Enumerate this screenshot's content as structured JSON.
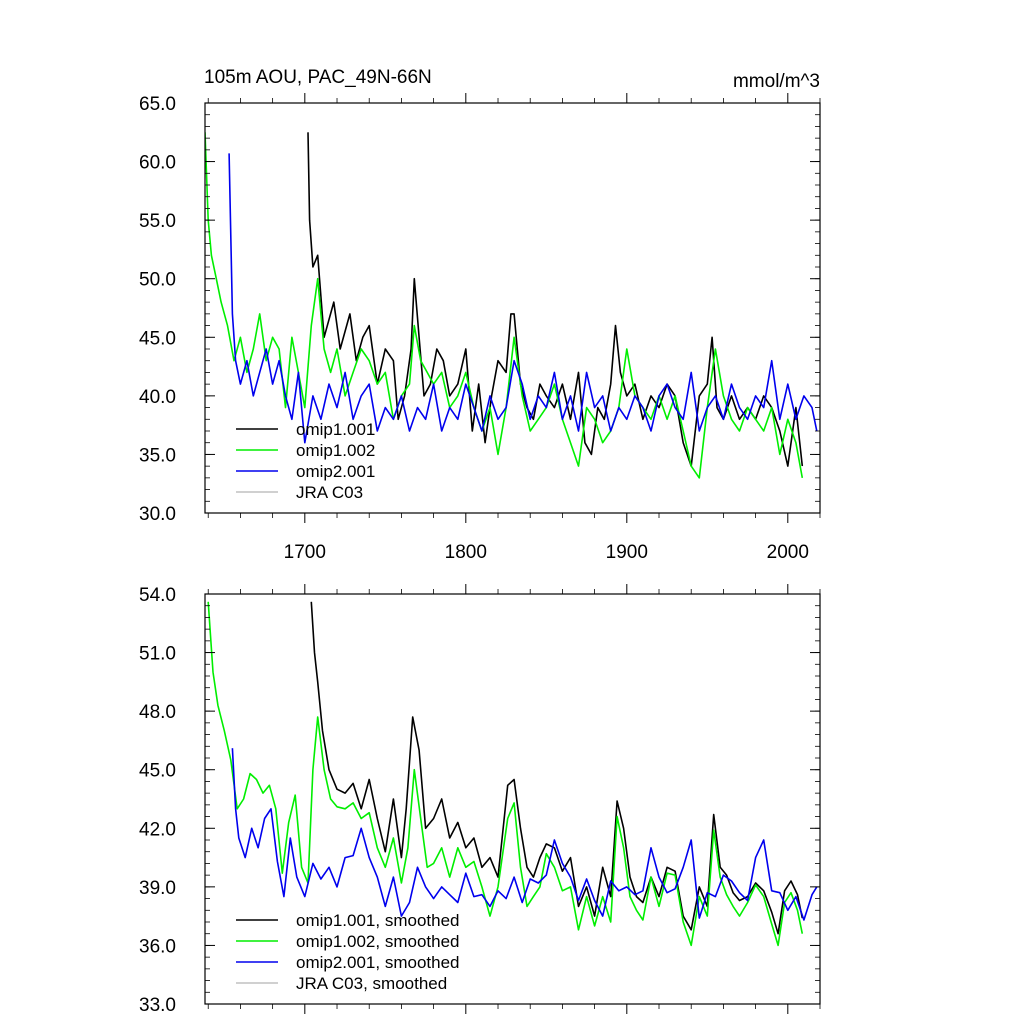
{
  "chart_data": [
    {
      "type": "line",
      "title": "105m AOU, PAC_49N-66N",
      "units": "mmol/m^3",
      "xlim": [
        1638,
        2020
      ],
      "ylim": [
        30,
        65
      ],
      "xticks": [
        1700,
        1800,
        1900,
        2000
      ],
      "xtick_labels": [
        "1700",
        "1800",
        "1900",
        "2000"
      ],
      "yticks": [
        30,
        35,
        40,
        45,
        50,
        55,
        60,
        65
      ],
      "ytick_labels": [
        "30.0",
        "35.0",
        "40.0",
        "45.0",
        "50.0",
        "55.0",
        "60.0",
        "65.0"
      ],
      "legend_position": "bottom-left",
      "series": [
        {
          "name": "omip1.001",
          "color": "#000000",
          "x": [
            1702,
            1703,
            1705,
            1708,
            1712,
            1718,
            1722,
            1728,
            1732,
            1736,
            1740,
            1745,
            1750,
            1755,
            1758,
            1762,
            1766,
            1768,
            1771,
            1774,
            1778,
            1782,
            1786,
            1790,
            1795,
            1800,
            1804,
            1808,
            1812,
            1816,
            1820,
            1825,
            1828,
            1830,
            1834,
            1838,
            1842,
            1846,
            1850,
            1855,
            1860,
            1865,
            1870,
            1874,
            1878,
            1882,
            1886,
            1890,
            1893,
            1896,
            1900,
            1905,
            1910,
            1915,
            1920,
            1925,
            1930,
            1935,
            1940,
            1945,
            1950,
            1953,
            1956,
            1960,
            1965,
            1970,
            1975,
            1980,
            1985,
            1990,
            1995,
            2000,
            2005,
            2009
          ],
          "values": [
            62.5,
            55,
            51,
            52,
            45,
            48,
            44,
            47,
            43,
            45,
            46,
            41,
            44,
            43,
            38,
            40,
            44,
            50,
            45,
            40,
            41,
            44,
            43,
            40,
            41,
            44,
            37,
            41,
            36,
            40,
            43,
            42,
            47,
            47,
            41,
            39,
            38,
            41,
            40,
            39,
            41,
            38,
            42,
            36,
            35,
            39,
            38,
            41,
            46,
            42,
            40,
            41,
            38,
            40,
            39,
            41,
            40,
            36,
            34,
            40,
            41,
            45,
            39,
            38,
            40,
            38,
            39,
            38,
            40,
            39,
            37,
            34,
            39,
            34
          ]
        },
        {
          "name": "omip1.002",
          "color": "#00ee00",
          "x": [
            1638,
            1640,
            1642,
            1645,
            1648,
            1652,
            1656,
            1660,
            1664,
            1668,
            1672,
            1676,
            1680,
            1684,
            1688,
            1692,
            1696,
            1700,
            1704,
            1708,
            1712,
            1716,
            1720,
            1725,
            1730,
            1735,
            1740,
            1745,
            1750,
            1755,
            1760,
            1765,
            1768,
            1772,
            1776,
            1780,
            1785,
            1790,
            1795,
            1800,
            1805,
            1810,
            1815,
            1820,
            1825,
            1830,
            1835,
            1840,
            1845,
            1850,
            1855,
            1860,
            1865,
            1870,
            1875,
            1880,
            1885,
            1890,
            1895,
            1900,
            1905,
            1910,
            1915,
            1920,
            1925,
            1930,
            1935,
            1940,
            1945,
            1950,
            1955,
            1960,
            1965,
            1970,
            1975,
            1980,
            1985,
            1990,
            1995,
            2000,
            2005,
            2009
          ],
          "values": [
            62.5,
            55,
            52,
            50,
            48,
            46,
            43,
            45,
            42,
            44,
            47,
            43,
            45,
            44,
            39,
            45,
            42,
            39,
            46,
            50,
            44,
            42,
            44,
            40,
            42,
            44,
            43,
            41,
            42,
            38,
            40,
            41,
            46,
            43,
            42,
            41,
            42,
            39,
            40,
            42,
            39,
            37,
            39,
            35,
            39,
            45,
            40,
            37,
            38,
            39,
            41,
            38,
            36,
            34,
            39,
            38,
            36,
            37,
            39,
            44,
            40,
            39,
            38,
            40,
            38,
            40,
            37,
            34,
            33,
            39,
            44,
            40,
            38,
            37,
            39,
            38,
            37,
            39,
            35,
            38,
            36,
            33
          ]
        },
        {
          "name": "omip2.001",
          "color": "#0000ee",
          "x": [
            1653,
            1655,
            1657,
            1660,
            1664,
            1668,
            1672,
            1676,
            1680,
            1684,
            1688,
            1692,
            1696,
            1700,
            1705,
            1710,
            1715,
            1720,
            1725,
            1730,
            1735,
            1740,
            1745,
            1750,
            1755,
            1760,
            1765,
            1770,
            1775,
            1780,
            1785,
            1790,
            1795,
            1800,
            1805,
            1810,
            1815,
            1820,
            1825,
            1830,
            1835,
            1840,
            1845,
            1850,
            1855,
            1860,
            1865,
            1870,
            1875,
            1880,
            1885,
            1890,
            1895,
            1900,
            1905,
            1910,
            1915,
            1920,
            1925,
            1930,
            1935,
            1940,
            1945,
            1950,
            1955,
            1960,
            1965,
            1970,
            1975,
            1980,
            1985,
            1990,
            1995,
            2000,
            2005,
            2010,
            2015,
            2018
          ],
          "values": [
            60.7,
            47,
            43,
            41,
            43,
            40,
            42,
            44,
            41,
            43,
            40,
            38,
            42,
            36,
            40,
            38,
            41,
            39,
            42,
            38,
            40,
            41,
            37,
            39,
            38,
            40,
            37,
            39,
            38,
            41,
            37,
            39,
            38,
            41,
            39,
            37,
            40,
            38,
            39,
            43,
            41,
            38,
            40,
            39,
            42,
            38,
            40,
            37,
            42,
            39,
            40,
            37,
            39,
            38,
            40,
            39,
            37,
            40,
            41,
            39,
            38,
            42,
            37,
            39,
            40,
            38,
            41,
            39,
            38,
            40,
            39,
            43,
            38,
            41,
            38,
            40,
            39,
            37
          ]
        },
        {
          "name": "JRA C03",
          "color": "#c0c0c0",
          "x": [],
          "values": []
        }
      ]
    },
    {
      "type": "line",
      "xlim": [
        1638,
        2020
      ],
      "ylim": [
        33,
        54
      ],
      "xticks": [
        1700,
        1800,
        1900,
        2000
      ],
      "yticks": [
        33,
        36,
        39,
        42,
        45,
        48,
        51,
        54
      ],
      "ytick_labels": [
        "33.0",
        "36.0",
        "39.0",
        "42.0",
        "45.0",
        "48.0",
        "51.0",
        "54.0"
      ],
      "legend_position": "bottom-left",
      "series": [
        {
          "name": "omip1.001, smoothed",
          "color": "#000000",
          "x": [
            1704,
            1706,
            1708,
            1711,
            1715,
            1720,
            1725,
            1730,
            1735,
            1740,
            1745,
            1750,
            1755,
            1760,
            1763,
            1767,
            1771,
            1775,
            1780,
            1785,
            1790,
            1795,
            1800,
            1805,
            1810,
            1815,
            1820,
            1826,
            1830,
            1834,
            1838,
            1842,
            1846,
            1850,
            1855,
            1860,
            1865,
            1870,
            1875,
            1880,
            1885,
            1890,
            1894,
            1898,
            1902,
            1906,
            1910,
            1915,
            1920,
            1925,
            1930,
            1935,
            1940,
            1945,
            1950,
            1954,
            1958,
            1962,
            1966,
            1970,
            1975,
            1980,
            1985,
            1990,
            1994,
            1998,
            2002,
            2006,
            2009
          ],
          "values": [
            53.6,
            51,
            49.5,
            47,
            45,
            44,
            43.8,
            44.3,
            43,
            44.5,
            42.5,
            40.8,
            43.5,
            40.5,
            43,
            47.7,
            46,
            42,
            42.5,
            43.5,
            41.5,
            42.3,
            41,
            41.5,
            40,
            40.5,
            39.5,
            44.2,
            44.5,
            42,
            40,
            39.5,
            40.5,
            41.2,
            41,
            39.8,
            40.5,
            38,
            39,
            37.5,
            40,
            38.5,
            43.4,
            42,
            39.5,
            38.5,
            38.2,
            39.5,
            38.5,
            40,
            39.8,
            37.5,
            36.8,
            39,
            38,
            42.7,
            40,
            39.6,
            38.7,
            38.3,
            38.5,
            39.2,
            38.8,
            37.7,
            36.6,
            38.8,
            39.3,
            38.6,
            37.4
          ]
        },
        {
          "name": "omip1.002, smoothed",
          "color": "#00ee00",
          "x": [
            1640,
            1643,
            1646,
            1650,
            1654,
            1658,
            1662,
            1666,
            1670,
            1674,
            1678,
            1682,
            1686,
            1690,
            1694,
            1698,
            1702,
            1705,
            1708,
            1712,
            1716,
            1720,
            1725,
            1730,
            1735,
            1740,
            1745,
            1750,
            1755,
            1760,
            1764,
            1768,
            1772,
            1776,
            1780,
            1785,
            1790,
            1795,
            1800,
            1805,
            1810,
            1815,
            1820,
            1826,
            1830,
            1834,
            1838,
            1842,
            1846,
            1850,
            1855,
            1860,
            1865,
            1870,
            1875,
            1880,
            1885,
            1890,
            1894,
            1898,
            1902,
            1906,
            1910,
            1915,
            1920,
            1925,
            1930,
            1935,
            1940,
            1945,
            1950,
            1954,
            1958,
            1962,
            1966,
            1970,
            1975,
            1980,
            1985,
            1990,
            1994,
            1998,
            2002,
            2006,
            2009
          ],
          "values": [
            53.6,
            50,
            48.3,
            47,
            45.5,
            43,
            43.5,
            44.8,
            44.5,
            43.8,
            44.2,
            43,
            39.7,
            42.3,
            43.7,
            40,
            39.2,
            45,
            47.7,
            45,
            43.5,
            43.1,
            43,
            43.3,
            42.5,
            42.8,
            41,
            40,
            41.5,
            39.2,
            41,
            45,
            42.5,
            40,
            40.2,
            41,
            39.5,
            41,
            40,
            40.3,
            39,
            37.5,
            39,
            42.5,
            43.3,
            40,
            38,
            38.5,
            39,
            40.7,
            40,
            38.8,
            39,
            36.8,
            38.5,
            37,
            38.5,
            37.2,
            42.6,
            41,
            38.5,
            37.8,
            37.3,
            39.5,
            38,
            39.7,
            39.6,
            37.2,
            36,
            38.5,
            37.5,
            41.9,
            39.5,
            38.6,
            38,
            37.5,
            38.2,
            39.1,
            38.5,
            37.1,
            36,
            38.2,
            38.7,
            37.8,
            36.6
          ]
        },
        {
          "name": "omip2.001, smoothed",
          "color": "#0000ee",
          "x": [
            1655,
            1657,
            1659,
            1663,
            1667,
            1671,
            1675,
            1679,
            1683,
            1687,
            1691,
            1695,
            1700,
            1705,
            1710,
            1715,
            1720,
            1725,
            1730,
            1735,
            1740,
            1745,
            1750,
            1755,
            1760,
            1765,
            1770,
            1775,
            1780,
            1785,
            1790,
            1795,
            1800,
            1805,
            1810,
            1815,
            1820,
            1825,
            1830,
            1835,
            1840,
            1845,
            1850,
            1855,
            1860,
            1865,
            1870,
            1875,
            1880,
            1885,
            1890,
            1895,
            1900,
            1905,
            1910,
            1915,
            1920,
            1925,
            1930,
            1935,
            1940,
            1945,
            1950,
            1955,
            1960,
            1965,
            1970,
            1975,
            1980,
            1985,
            1990,
            1995,
            2000,
            2005,
            2010,
            2015,
            2018
          ],
          "values": [
            46.1,
            43,
            41.5,
            40.5,
            42,
            41,
            42.5,
            43,
            40.3,
            38.5,
            41.5,
            39.5,
            38.5,
            40.2,
            39.4,
            40,
            39,
            40.5,
            40.6,
            42,
            40.5,
            39.5,
            38,
            39.5,
            37.5,
            38.2,
            40,
            39,
            38.4,
            39,
            38.6,
            38.2,
            39.7,
            38.5,
            38.6,
            38,
            38.8,
            38.4,
            39.5,
            38.2,
            39.4,
            39.2,
            39.6,
            41.4,
            40.2,
            39.5,
            38.3,
            39.4,
            38.3,
            37.5,
            39.3,
            38.8,
            39,
            38.6,
            38.8,
            41,
            39.5,
            38.7,
            38.9,
            40,
            41.4,
            37.4,
            38.7,
            38.5,
            39.6,
            39.3,
            38.7,
            38.3,
            40.5,
            41.4,
            38.8,
            38.7,
            37.8,
            38.5,
            37.3,
            38.6,
            39
          ]
        },
        {
          "name": "JRA C03, smoothed",
          "color": "#c0c0c0",
          "x": [],
          "values": []
        }
      ]
    }
  ]
}
